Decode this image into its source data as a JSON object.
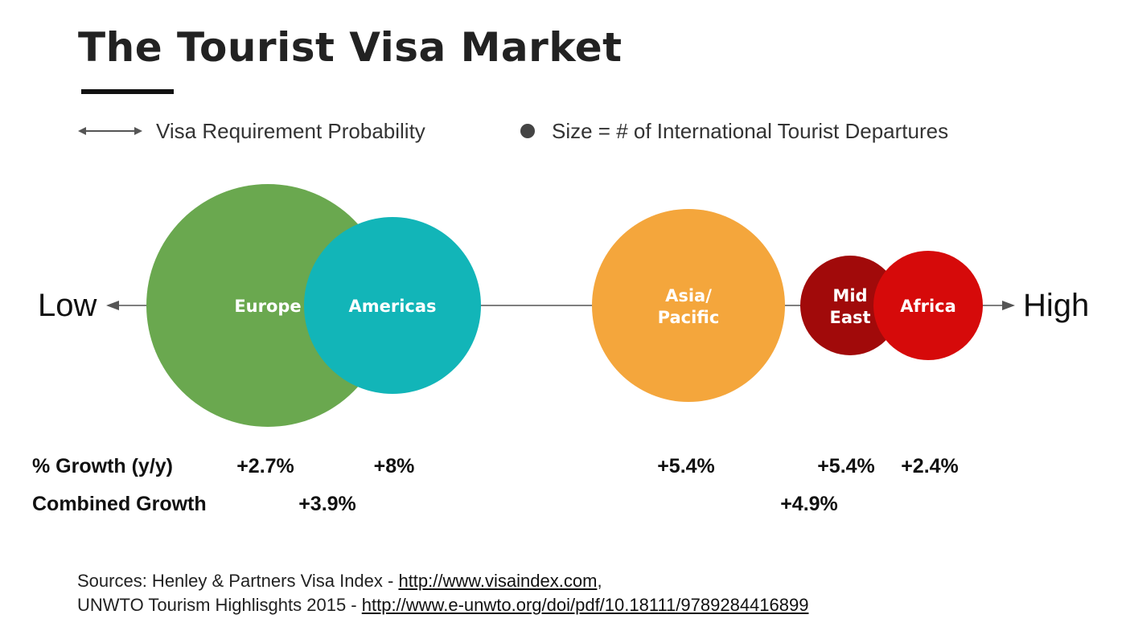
{
  "title": "The Tourist Visa Market",
  "legend": {
    "axis_meaning": "Visa Requirement Probability",
    "size_meaning": "Size = # of International Tourist Departures"
  },
  "axis": {
    "low_label": "Low",
    "high_label": "High"
  },
  "regions": [
    {
      "key": "europe",
      "label_lines": [
        "Europe"
      ],
      "color": "#6aa84f",
      "growth": "+2.7%"
    },
    {
      "key": "americas",
      "label_lines": [
        "Americas"
      ],
      "color": "#12b5b8",
      "growth": "+8%"
    },
    {
      "key": "asia_pacific",
      "label_lines": [
        "Asia/",
        "Pacific"
      ],
      "color": "#f4a63c",
      "growth": "+5.4%"
    },
    {
      "key": "mid_east",
      "label_lines": [
        "Mid",
        "East"
      ],
      "color": "#a10a0a",
      "growth": "+5.4%"
    },
    {
      "key": "africa",
      "label_lines": [
        "Africa"
      ],
      "color": "#d60a0a",
      "growth": "+2.4%"
    }
  ],
  "rows": {
    "growth_label": "% Growth (y/y)",
    "combined_label": "Combined Growth"
  },
  "combined": {
    "europe_americas": "+3.9%",
    "mid_east_africa": "+4.9%"
  },
  "sources": {
    "line1_prefix": "Sources: Henley & Partners Visa Index - ",
    "line1_link": "http://www.visaindex.com",
    "line1_suffix": ",",
    "line2_prefix": "UNWTO Tourism Highlisghts 2015 - ",
    "line2_link": "http://www.e-unwto.org/doi/pdf/10.18111/9789284416899"
  }
}
